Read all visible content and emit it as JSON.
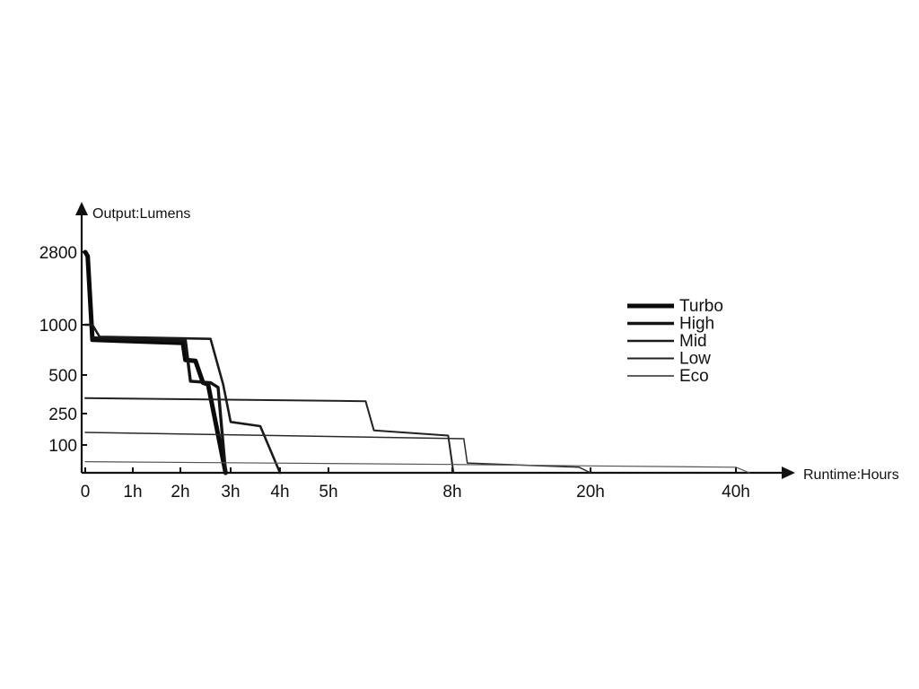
{
  "chart_data": {
    "type": "line",
    "ylabel": "Output:Lumens",
    "xlabel": "Runtime:Hours",
    "yticks": [
      {
        "value": 2800,
        "label": "2800"
      },
      {
        "value": 1000,
        "label": "1000"
      },
      {
        "value": 500,
        "label": "500"
      },
      {
        "value": 250,
        "label": "250"
      },
      {
        "value": 100,
        "label": "100"
      }
    ],
    "xticks": [
      {
        "value": 0,
        "label": "0"
      },
      {
        "value": 1,
        "label": "1h"
      },
      {
        "value": 2,
        "label": "2h"
      },
      {
        "value": 3,
        "label": "3h"
      },
      {
        "value": 4,
        "label": "4h"
      },
      {
        "value": 5,
        "label": "5h"
      },
      {
        "value": 8,
        "label": "8h"
      },
      {
        "value": 20,
        "label": "20h"
      },
      {
        "value": 40,
        "label": "40h"
      }
    ],
    "legend_position": "right",
    "series": [
      {
        "name": "Turbo",
        "points": [
          [
            0,
            2800
          ],
          [
            0.05,
            2700
          ],
          [
            0.15,
            850
          ],
          [
            2.05,
            820
          ],
          [
            2.1,
            650
          ],
          [
            2.3,
            640
          ],
          [
            2.45,
            450
          ],
          [
            2.55,
            440
          ],
          [
            2.9,
            0
          ]
        ]
      },
      {
        "name": "High",
        "points": [
          [
            0.15,
            870
          ],
          [
            2.1,
            840
          ],
          [
            2.2,
            460
          ],
          [
            2.6,
            450
          ],
          [
            2.75,
            420
          ],
          [
            2.9,
            0
          ]
        ]
      },
      {
        "name": "Mid",
        "points": [
          [
            0,
            1000
          ],
          [
            0.15,
            1000
          ],
          [
            0.3,
            880
          ],
          [
            2.6,
            860
          ],
          [
            2.85,
            440
          ],
          [
            3,
            210
          ],
          [
            3.6,
            190
          ],
          [
            4,
            0
          ]
        ]
      },
      {
        "name": "Low",
        "points": [
          [
            0,
            350
          ],
          [
            5.9,
            330
          ],
          [
            6.1,
            170
          ],
          [
            7.9,
            145
          ],
          [
            8.1,
            0
          ]
        ]
      },
      {
        "name": "Eco",
        "points": [
          [
            0,
            160
          ],
          [
            9,
            130
          ],
          [
            9.3,
            35
          ],
          [
            19,
            20
          ],
          [
            20,
            0
          ]
        ]
      },
      {
        "name": "",
        "points": [
          [
            0,
            40
          ],
          [
            8,
            30
          ],
          [
            20,
            25
          ],
          [
            40,
            20
          ],
          [
            41,
            0
          ]
        ]
      }
    ]
  }
}
